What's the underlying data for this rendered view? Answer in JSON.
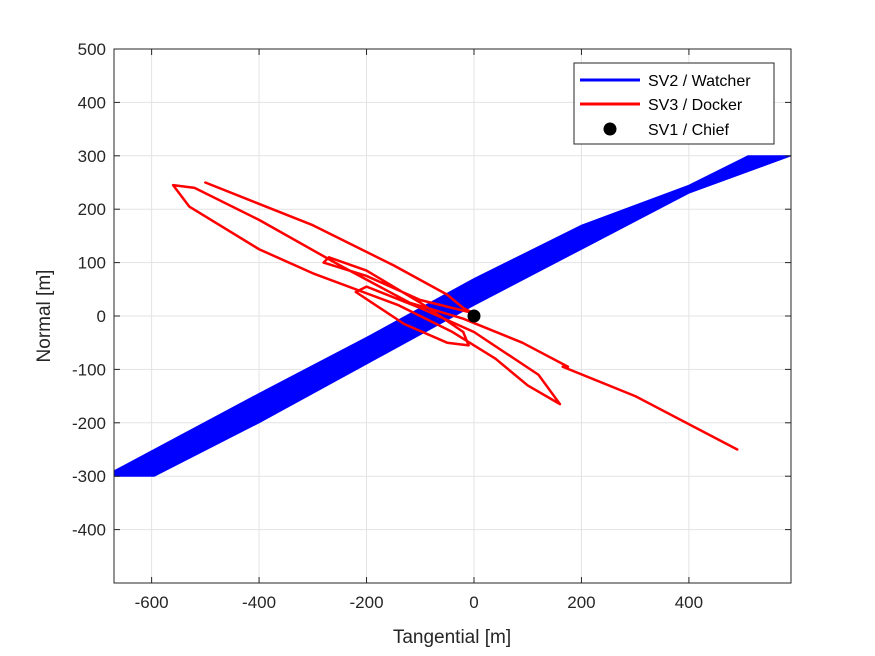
{
  "chart_data": {
    "type": "line",
    "xlabel": "Tangential [m]",
    "ylabel": "Normal [m]",
    "xlim": [
      -670,
      590
    ],
    "ylim": [
      -500,
      500
    ],
    "xticks": [
      -600,
      -400,
      -200,
      0,
      200,
      400
    ],
    "yticks": [
      -400,
      -300,
      -200,
      -100,
      0,
      100,
      200,
      300,
      400,
      500
    ],
    "grid": true,
    "legend_position": "top-right",
    "series": [
      {
        "name": "SV2 / Watcher",
        "color": "#0000ff",
        "style": "band",
        "upper": [
          [
            -670,
            -290
          ],
          [
            -400,
            -145
          ],
          [
            -200,
            -40
          ],
          [
            0,
            70
          ],
          [
            200,
            170
          ],
          [
            400,
            245
          ],
          [
            510,
            300
          ],
          [
            590,
            300
          ]
        ],
        "lower": [
          [
            -670,
            -300
          ],
          [
            -595,
            -300
          ],
          [
            -400,
            -200
          ],
          [
            -200,
            -90
          ],
          [
            0,
            20
          ],
          [
            200,
            125
          ],
          [
            400,
            230
          ],
          [
            590,
            300
          ]
        ]
      },
      {
        "name": "SV3 / Docker",
        "color": "#ff0000",
        "style": "line",
        "points": [
          [
            -500,
            250
          ],
          [
            -300,
            170
          ],
          [
            -150,
            95
          ],
          [
            -50,
            40
          ],
          [
            -20,
            15
          ],
          [
            0,
            5
          ],
          [
            -100,
            30
          ],
          [
            -200,
            75
          ],
          [
            -280,
            100
          ],
          [
            -270,
            110
          ],
          [
            -200,
            85
          ],
          [
            -100,
            25
          ],
          [
            -20,
            -30
          ],
          [
            -10,
            -55
          ],
          [
            -50,
            -50
          ],
          [
            -130,
            -15
          ],
          [
            -220,
            45
          ],
          [
            -200,
            55
          ],
          [
            -100,
            15
          ],
          [
            0,
            -30
          ],
          [
            120,
            -110
          ],
          [
            160,
            -165
          ],
          [
            100,
            -130
          ],
          [
            40,
            -80
          ],
          [
            -40,
            -30
          ],
          [
            -140,
            20
          ],
          [
            -300,
            80
          ],
          [
            -400,
            125
          ],
          [
            -530,
            205
          ],
          [
            -560,
            245
          ],
          [
            -520,
            240
          ],
          [
            -400,
            180
          ],
          [
            -250,
            95
          ],
          [
            -120,
            25
          ],
          [
            -20,
            -5
          ],
          [
            90,
            -50
          ],
          [
            175,
            -95
          ],
          [
            165,
            -95
          ],
          [
            300,
            -150
          ],
          [
            490,
            -250
          ]
        ]
      },
      {
        "name": "SV1 / Chief",
        "color": "#000000",
        "style": "marker",
        "points": [
          [
            0,
            0
          ]
        ]
      }
    ]
  }
}
